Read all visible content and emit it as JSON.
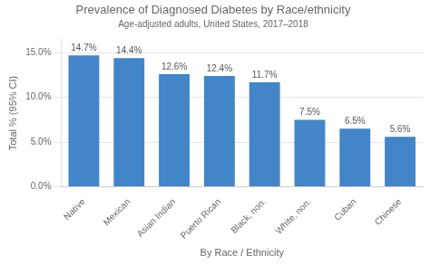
{
  "chart_data": {
    "type": "bar",
    "title": "Prevalence of Diagnosed Diabetes by Race/ethnicity",
    "subtitle": "Age-adjusted adults, United States, 2017–2018",
    "xlabel": "By Race / Ethnicity",
    "ylabel": "Total % (95% CI)",
    "categories": [
      "Native",
      "Mexican",
      "Asian Indian",
      "Puerto Rican",
      "Black, non.",
      "White, non.",
      "Cuban",
      "Chinese"
    ],
    "values": [
      14.7,
      14.4,
      12.6,
      12.4,
      11.7,
      7.5,
      6.5,
      5.6
    ],
    "value_labels": [
      "14.7%",
      "14.4%",
      "12.6%",
      "12.4%",
      "11.7%",
      "7.5%",
      "6.5%",
      "5.6%"
    ],
    "data_labels": true,
    "color": "#4285c8",
    "ylim": [
      0,
      16.5
    ],
    "yticks": [
      {
        "value": 0.0,
        "label": "0.0%"
      },
      {
        "value": 5.0,
        "label": "5.0%"
      },
      {
        "value": 10.0,
        "label": "10.0%"
      },
      {
        "value": 15.0,
        "label": "15.0%"
      }
    ],
    "grid": true
  }
}
